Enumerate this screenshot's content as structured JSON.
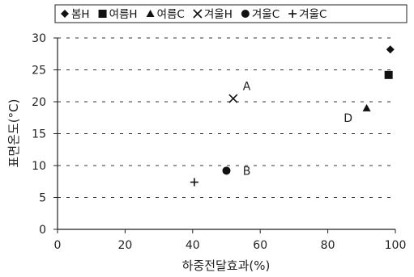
{
  "chart_data": {
    "type": "scatter",
    "title": "",
    "xlabel": "하중전달효과(%)",
    "ylabel": "표면온도(°C)",
    "xlim": [
      0,
      100
    ],
    "ylim": [
      0,
      30
    ],
    "x_ticks": [
      0,
      20,
      40,
      60,
      80,
      100
    ],
    "y_ticks": [
      0,
      5,
      10,
      15,
      20,
      25,
      30
    ],
    "grid": "horizontal dashed",
    "legend_position": "top",
    "series": [
      {
        "name": "봄H",
        "marker": "diamond",
        "x": [
          98.5
        ],
        "y": [
          28.2
        ]
      },
      {
        "name": "여름H",
        "marker": "square",
        "x": [
          98
        ],
        "y": [
          24.2
        ]
      },
      {
        "name": "여름C",
        "marker": "triangle",
        "x": [
          91.5
        ],
        "y": [
          19
        ]
      },
      {
        "name": "겨울H",
        "marker": "x",
        "x": [
          52
        ],
        "y": [
          20.5
        ]
      },
      {
        "name": "겨울C",
        "marker": "circle",
        "x": [
          50
        ],
        "y": [
          9.2
        ]
      },
      {
        "name": "겨울C",
        "marker": "plus",
        "x": [
          40.5
        ],
        "y": [
          7.4
        ]
      }
    ],
    "annotations": [
      {
        "text": "A",
        "x": 56,
        "y": 22.5
      },
      {
        "text": "B",
        "x": 56,
        "y": 9.2
      },
      {
        "text": "D",
        "x": 86,
        "y": 17.5
      }
    ],
    "marker_color": "#111111"
  }
}
